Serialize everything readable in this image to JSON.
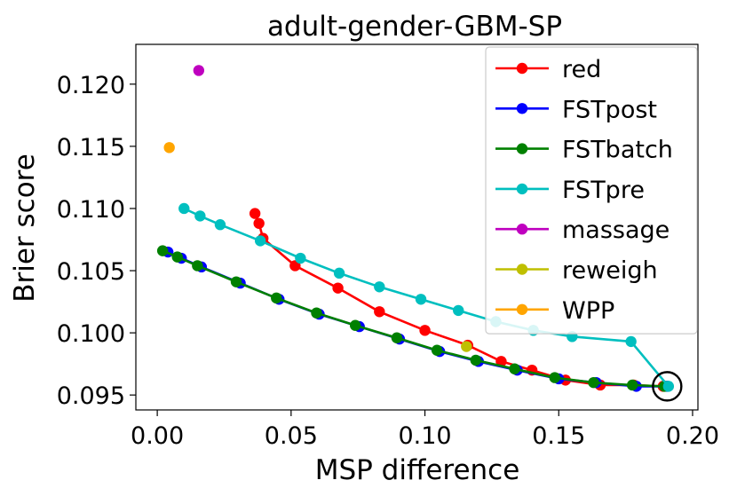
{
  "chart_data": {
    "type": "line",
    "title": "adult-gender-GBM-SP",
    "xlabel": "MSP difference",
    "ylabel": "Brier score",
    "xlim": [
      -0.008,
      0.202
    ],
    "ylim": [
      0.0938,
      0.1232
    ],
    "xticks": [
      0.0,
      0.05,
      0.1,
      0.15,
      0.2
    ],
    "xtick_labels": [
      "0.00",
      "0.05",
      "0.10",
      "0.15",
      "0.20"
    ],
    "yticks": [
      0.095,
      0.1,
      0.105,
      0.11,
      0.115,
      0.12
    ],
    "ytick_labels": [
      "0.095",
      "0.100",
      "0.105",
      "0.110",
      "0.115",
      "0.120"
    ],
    "grid": false,
    "legend_position": "top-right",
    "series": [
      {
        "name": "red",
        "color": "#ff0000",
        "mode": "line",
        "x": [
          0.0365,
          0.038,
          0.0395,
          0.0515,
          0.0675,
          0.083,
          0.1,
          0.116,
          0.1285,
          0.14,
          0.1525,
          0.1655,
          0.178,
          0.189
        ],
        "y": [
          0.1096,
          0.1088,
          0.1076,
          0.1054,
          0.1036,
          0.1017,
          0.1002,
          0.099,
          0.0977,
          0.097,
          0.0962,
          0.0958,
          0.0958,
          0.0957
        ]
      },
      {
        "name": "FSTpost",
        "color": "#0000ff",
        "mode": "line",
        "x": [
          0.004,
          0.009,
          0.0165,
          0.031,
          0.0455,
          0.0605,
          0.0755,
          0.0905,
          0.1055,
          0.12,
          0.1345,
          0.15,
          0.164,
          0.179,
          0.1905
        ],
        "y": [
          0.1065,
          0.106,
          0.1053,
          0.104,
          0.1027,
          0.1015,
          0.1005,
          0.0995,
          0.0985,
          0.0977,
          0.097,
          0.0963,
          0.096,
          0.0957,
          0.0957
        ]
      },
      {
        "name": "FSTbatch",
        "color": "#008000",
        "mode": "line",
        "x": [
          0.002,
          0.0075,
          0.015,
          0.0295,
          0.0445,
          0.0595,
          0.074,
          0.0895,
          0.1045,
          0.119,
          0.1335,
          0.1485,
          0.163,
          0.1775,
          0.1895
        ],
        "y": [
          0.1066,
          0.1061,
          0.1054,
          0.1041,
          0.1028,
          0.1016,
          0.1006,
          0.0996,
          0.0986,
          0.0978,
          0.0971,
          0.0964,
          0.096,
          0.0958,
          0.0957
        ]
      },
      {
        "name": "FSTpre",
        "color": "#00bfbf",
        "mode": "line",
        "x": [
          0.01,
          0.016,
          0.0235,
          0.0385,
          0.0535,
          0.068,
          0.083,
          0.0985,
          0.1125,
          0.1265,
          0.1405,
          0.155,
          0.177,
          0.191
        ],
        "y": [
          0.11,
          0.1094,
          0.1087,
          0.1074,
          0.106,
          0.1048,
          0.1037,
          0.1027,
          0.1018,
          0.1009,
          0.1002,
          0.0997,
          0.0993,
          0.0957
        ]
      },
      {
        "name": "massage",
        "color": "#bf00bf",
        "mode": "point",
        "x": [
          0.0155
        ],
        "y": [
          0.1211
        ]
      },
      {
        "name": "reweigh",
        "color": "#bfbf00",
        "mode": "point",
        "x": [
          0.1155
        ],
        "y": [
          0.0989
        ]
      },
      {
        "name": "WPP",
        "color": "#ffa500",
        "mode": "point",
        "x": [
          0.0045
        ],
        "y": [
          0.1149
        ]
      }
    ],
    "annotation": {
      "x": 0.1905,
      "y": 0.0957
    }
  }
}
